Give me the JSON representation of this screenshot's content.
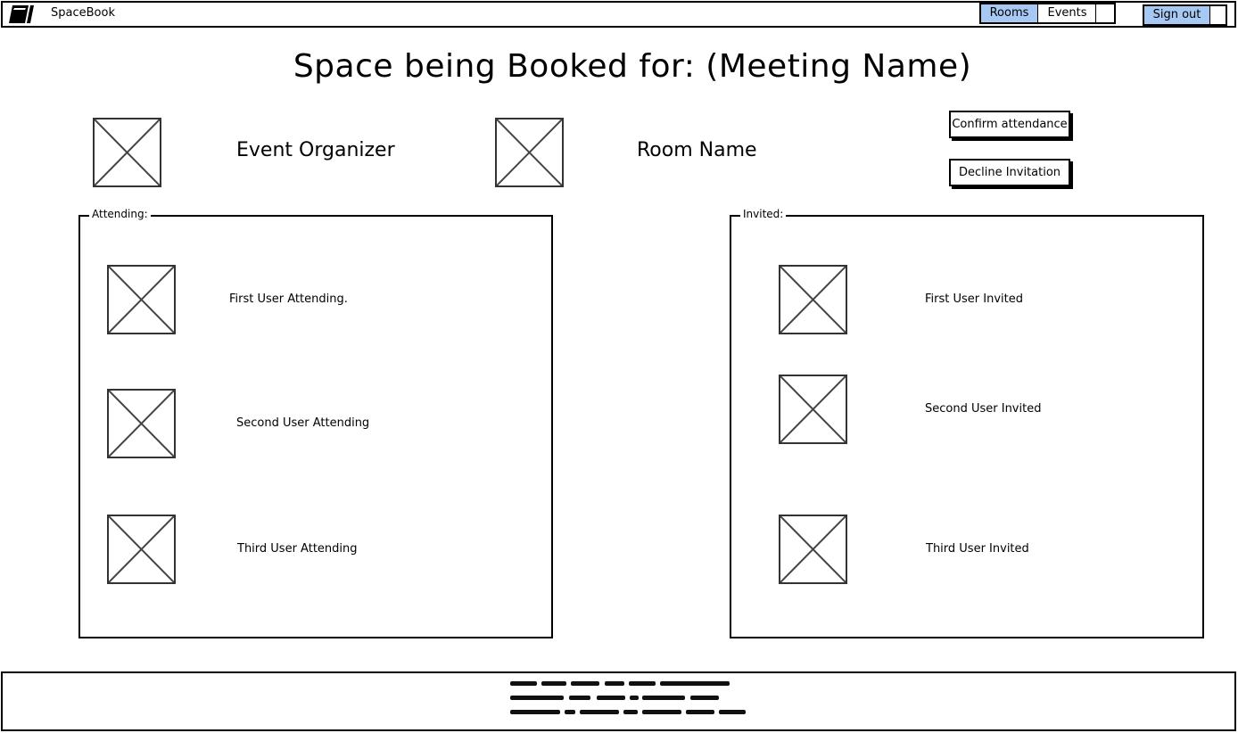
{
  "header": {
    "app_name": "SpaceBook",
    "tabs": [
      {
        "label": "Rooms",
        "selected": true
      },
      {
        "label": "Events",
        "selected": false
      }
    ],
    "sign_out_label": "Sign out"
  },
  "main": {
    "title": "Space being Booked for: (Meeting Name)",
    "organizer_label": "Event Organizer",
    "room_label": "Room Name",
    "confirm_button": "Confirm attendance",
    "decline_button": "Decline Invitation"
  },
  "attending": {
    "legend": "Attending:",
    "users": [
      "First User Attending.",
      "Second User Attending",
      "Third User Attending"
    ]
  },
  "invited": {
    "legend": "Invited:",
    "users": [
      "First User Invited",
      "Second User Invited",
      "Third User Invited"
    ]
  },
  "colors": {
    "selected_tab": "#a6c8f2",
    "border": "#000000",
    "placeholder_stroke": "#333333"
  },
  "icons": {
    "logo": "book-icon",
    "placeholder": "image-placeholder-icon"
  }
}
